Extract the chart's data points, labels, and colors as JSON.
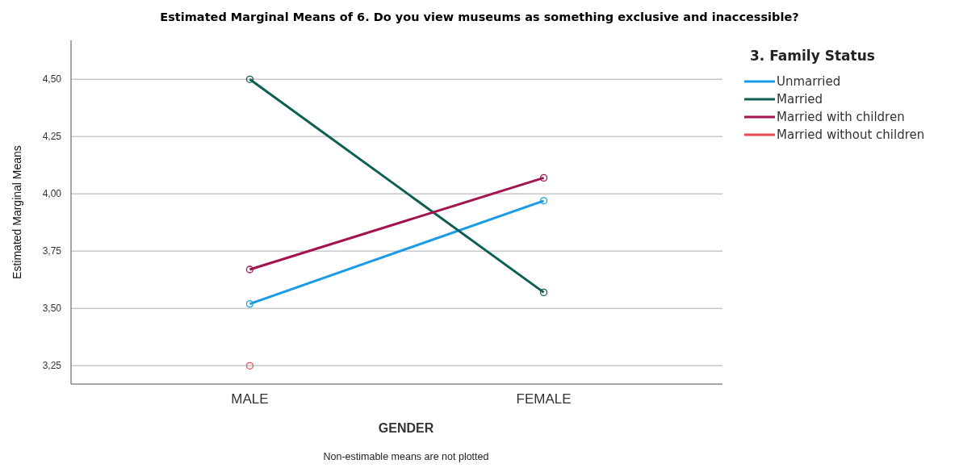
{
  "chart_data": {
    "type": "line",
    "title": "Estimated Marginal Means of 6. Do you view museums as something exclusive and inaccessible?",
    "xlabel": "GENDER",
    "ylabel": "Estimated Marginal Means",
    "legend_title": "3. Family Status",
    "categories": [
      "MALE",
      "FEMALE"
    ],
    "series": [
      {
        "name": "Unmarried",
        "color": "#1a9be6",
        "values": [
          3.52,
          3.97
        ]
      },
      {
        "name": "Married",
        "color": "#0d5e50",
        "values": [
          4.5,
          3.57
        ]
      },
      {
        "name": "Married with children",
        "color": "#a3134f",
        "values": [
          3.67,
          4.07
        ]
      },
      {
        "name": "Married without children",
        "color": "#ee4a55",
        "values": [
          3.25,
          null
        ]
      }
    ],
    "ylim": [
      3.17,
      4.67
    ],
    "yticks": [
      {
        "value": 3.25,
        "label": "3,25"
      },
      {
        "value": 3.5,
        "label": "3,50"
      },
      {
        "value": 3.75,
        "label": "3,75"
      },
      {
        "value": 4.0,
        "label": "4,00"
      },
      {
        "value": 4.25,
        "label": "4,25"
      },
      {
        "value": 4.5,
        "label": "4,50"
      }
    ],
    "grid": "y",
    "legend": "top right",
    "marker": "circle",
    "line_style": "solid",
    "annotations": [
      "Non-estimable means are not plotted"
    ]
  }
}
